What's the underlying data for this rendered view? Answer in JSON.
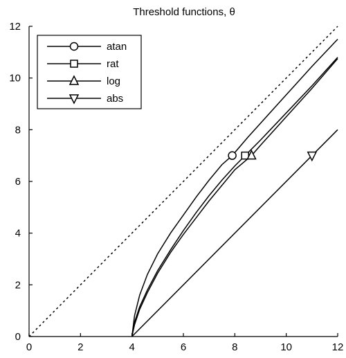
{
  "chart_data": {
    "type": "line",
    "title": "Threshold functions, θ",
    "xlabel": "",
    "ylabel": "",
    "xlim": [
      0,
      12
    ],
    "ylim": [
      0,
      12
    ],
    "xticks": [
      0,
      2,
      4,
      6,
      8,
      10,
      12
    ],
    "yticks": [
      0,
      2,
      4,
      6,
      8,
      10,
      12
    ],
    "grid": false,
    "legend_position": "top-left",
    "reference_line": {
      "style": "dotted",
      "x": [
        0,
        12
      ],
      "y": [
        0,
        12
      ]
    },
    "series": [
      {
        "name": "atan",
        "marker": "circle",
        "x": [
          4.0,
          4.1,
          4.3,
          4.6,
          5.0,
          5.5,
          6.0,
          6.5,
          7.0,
          7.5,
          7.9,
          8.5,
          9.0,
          10.0,
          11.0,
          12.0
        ],
        "y": [
          0.0,
          0.8,
          1.6,
          2.4,
          3.2,
          4.0,
          4.7,
          5.4,
          6.05,
          6.65,
          7.0,
          7.7,
          8.25,
          9.35,
          10.45,
          11.5
        ],
        "marker_points": [
          [
            7.9,
            7.0
          ]
        ]
      },
      {
        "name": "rat",
        "marker": "square",
        "x": [
          4.0,
          4.1,
          4.3,
          4.6,
          5.0,
          5.5,
          6.0,
          6.5,
          7.0,
          7.5,
          8.0,
          8.4,
          9.0,
          10.0,
          11.0,
          12.0
        ],
        "y": [
          0.0,
          0.55,
          1.15,
          1.8,
          2.55,
          3.35,
          4.1,
          4.8,
          5.45,
          6.05,
          6.6,
          7.0,
          7.6,
          8.65,
          9.7,
          10.8
        ],
        "marker_points": [
          [
            8.4,
            7.0
          ]
        ]
      },
      {
        "name": "log",
        "marker": "triangle-up",
        "x": [
          4.0,
          4.1,
          4.3,
          4.6,
          5.0,
          5.5,
          6.0,
          6.5,
          7.0,
          7.5,
          8.0,
          8.65,
          9.0,
          10.0,
          11.0,
          12.0
        ],
        "y": [
          0.0,
          0.45,
          1.05,
          1.7,
          2.45,
          3.25,
          3.95,
          4.6,
          5.25,
          5.85,
          6.45,
          7.0,
          7.4,
          8.5,
          9.6,
          10.75
        ],
        "marker_points": [
          [
            8.65,
            7.0
          ]
        ]
      },
      {
        "name": "abs",
        "marker": "triangle-down",
        "x": [
          4.0,
          12.0
        ],
        "y": [
          0.0,
          8.0
        ],
        "marker_points": [
          [
            11.0,
            7.0
          ]
        ]
      }
    ]
  }
}
